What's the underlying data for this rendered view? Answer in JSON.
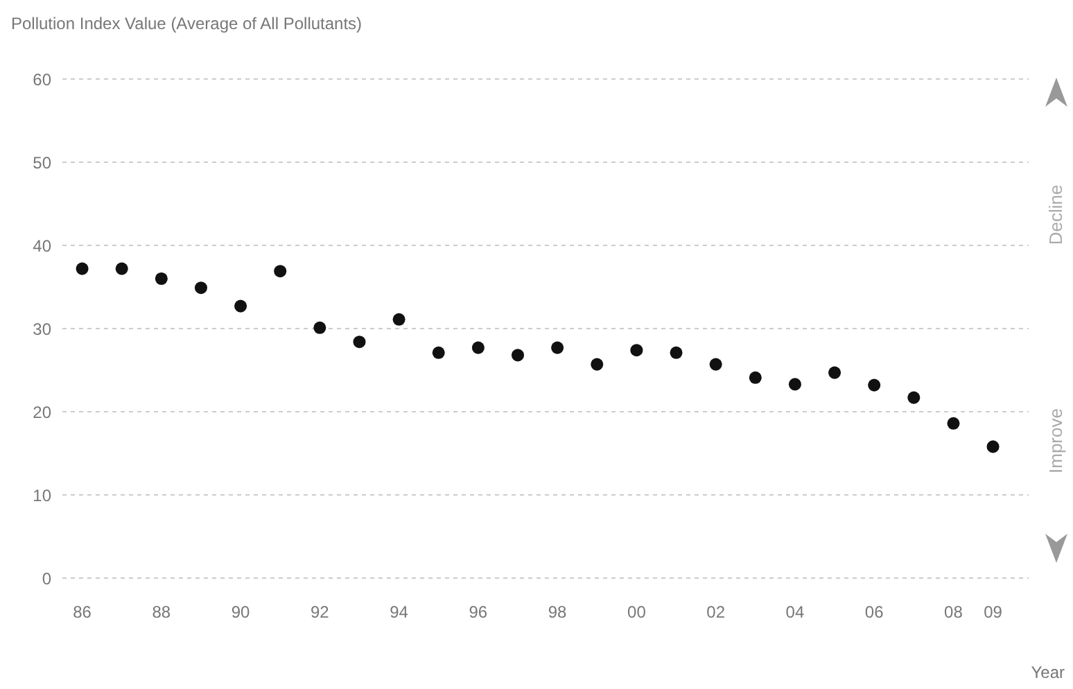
{
  "chart_data": {
    "type": "scatter",
    "ylabel": "Pollution Index Value (Average of All Pollutants)",
    "xlabel": "Year",
    "categories": [
      "86",
      null,
      "88",
      null,
      "90",
      null,
      "92",
      null,
      "94",
      null,
      "96",
      null,
      "98",
      null,
      "00",
      null,
      "02",
      null,
      "04",
      null,
      "06",
      null,
      "08",
      "09"
    ],
    "series": [
      {
        "color": "#111111",
        "values": [
          37.2,
          37.2,
          36.0,
          34.9,
          32.7,
          36.9,
          30.1,
          28.4,
          31.1,
          27.1,
          27.7,
          26.8,
          27.7,
          25.7,
          27.4,
          27.1,
          25.7,
          24.1,
          23.3,
          24.7,
          23.2,
          21.7,
          18.6,
          15.8
        ]
      }
    ],
    "ylim": [
      0,
      60
    ],
    "yticks": [
      0,
      10,
      20,
      30,
      40,
      50,
      60
    ],
    "grid": "y",
    "marker": "circle",
    "legend": false,
    "annotations": [
      "Decline",
      "Improve"
    ]
  }
}
